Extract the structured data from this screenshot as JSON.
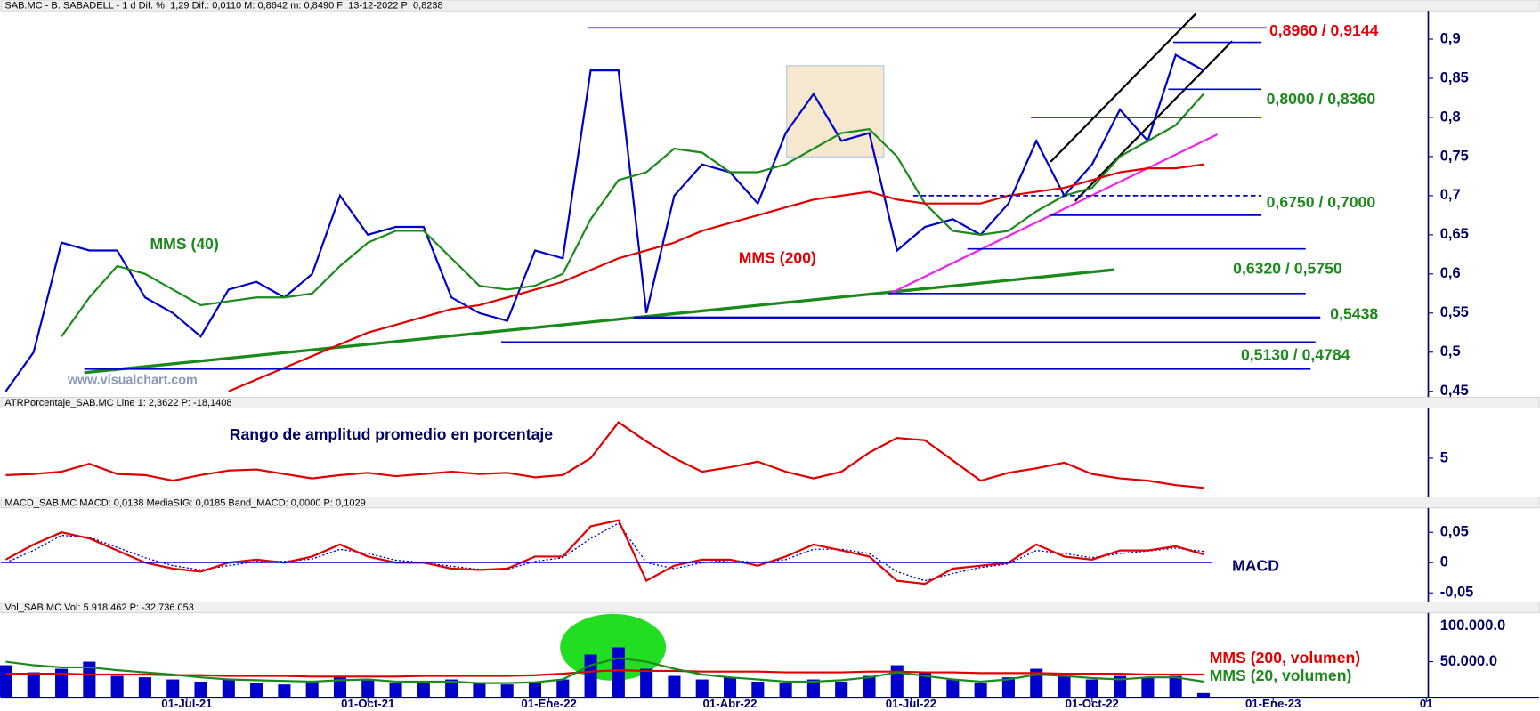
{
  "chart_data": {
    "type": "stock-panels",
    "x": [
      0,
      2,
      4,
      6,
      8,
      10,
      12,
      14,
      16,
      18,
      20,
      22,
      24,
      26,
      28,
      30,
      32,
      34,
      36,
      38,
      40,
      42,
      44,
      46,
      48,
      50,
      52,
      54,
      56,
      58,
      60,
      62,
      64,
      66,
      68,
      70,
      72,
      74,
      76,
      78,
      80,
      82,
      84,
      86
    ],
    "xlim": [
      0,
      102
    ],
    "xticks": [
      {
        "value": 13,
        "label": "01-Jul-21"
      },
      {
        "value": 26,
        "label": "01-Oct-21"
      },
      {
        "value": 39,
        "label": "01-Ene-22"
      },
      {
        "value": 52,
        "label": "01-Abr-22"
      },
      {
        "value": 65,
        "label": "01-Jul-22"
      },
      {
        "value": 78,
        "label": "01-Oct-22"
      },
      {
        "value": 91,
        "label": "01-Ene-23"
      },
      {
        "value": 102,
        "label": "01"
      }
    ],
    "watermark": "www.visualchart.com",
    "panels": [
      {
        "type": "line",
        "header": "SAB.MC - B. SABADELL - 1 d Dif. %: 1,29 Dif.: 0,0110 M: 0,8642 m: 0,8490 F: 13-12-2022 P: 0,8238",
        "ylim": [
          0.445,
          0.935
        ],
        "yticks": [
          {
            "value": 0.45,
            "label": "0,45"
          },
          {
            "value": 0.5,
            "label": "0,5"
          },
          {
            "value": 0.55,
            "label": "0,55"
          },
          {
            "value": 0.6,
            "label": "0,6"
          },
          {
            "value": 0.65,
            "label": "0,65"
          },
          {
            "value": 0.7,
            "label": "0,7"
          },
          {
            "value": 0.75,
            "label": "0,75"
          },
          {
            "value": 0.8,
            "label": "0,8"
          },
          {
            "value": 0.85,
            "label": "0,85"
          },
          {
            "value": 0.9,
            "label": "0,9"
          }
        ],
        "series": [
          {
            "color": "#0000cc",
            "values": [
              0.45,
              0.5,
              0.64,
              0.63,
              0.63,
              0.57,
              0.55,
              0.52,
              0.58,
              0.59,
              0.57,
              0.6,
              0.7,
              0.65,
              0.66,
              0.66,
              0.57,
              0.55,
              0.54,
              0.63,
              0.62,
              0.86,
              0.86,
              0.55,
              0.7,
              0.74,
              0.73,
              0.69,
              0.78,
              0.83,
              0.77,
              0.78,
              0.63,
              0.66,
              0.67,
              0.65,
              0.69,
              0.77,
              0.7,
              0.74,
              0.81,
              0.77,
              0.88,
              0.86
            ]
          },
          {
            "name": "MMS (40)",
            "color": "#1a8a1a",
            "values": [
              null,
              null,
              0.52,
              0.57,
              0.61,
              0.6,
              0.58,
              0.56,
              0.565,
              0.57,
              0.57,
              0.575,
              0.61,
              0.64,
              0.655,
              0.655,
              0.62,
              0.585,
              0.58,
              0.585,
              0.6,
              0.67,
              0.72,
              0.73,
              0.76,
              0.755,
              0.73,
              0.73,
              0.74,
              0.76,
              0.78,
              0.785,
              0.75,
              0.69,
              0.655,
              0.65,
              0.655,
              0.68,
              0.7,
              0.71,
              0.75,
              0.77,
              0.79,
              0.83
            ]
          },
          {
            "name": "MMS (200)",
            "color": "#e00000",
            "values": [
              null,
              null,
              null,
              null,
              null,
              null,
              null,
              null,
              0.45,
              0.465,
              0.48,
              0.495,
              0.51,
              0.525,
              0.535,
              0.545,
              0.555,
              0.56,
              0.57,
              0.58,
              0.59,
              0.605,
              0.62,
              0.63,
              0.64,
              0.655,
              0.665,
              0.675,
              0.685,
              0.695,
              0.7,
              0.705,
              0.695,
              0.69,
              0.69,
              0.69,
              0.7,
              0.705,
              0.71,
              0.72,
              0.73,
              0.735,
              0.735,
              0.74
            ]
          }
        ],
        "annotations": [
          {
            "text": "0,8960 / 0,9144",
            "color": "#e8000b",
            "levels": [
              0.896,
              0.9144
            ]
          },
          {
            "text": "0,8000 / 0,8360",
            "color": "#1a8a1a",
            "levels": [
              0.8,
              0.836
            ]
          },
          {
            "text": "0,6750 / 0,7000",
            "color": "#1a8a1a",
            "levels": [
              0.675,
              0.7
            ]
          },
          {
            "text": "0,6320 / 0,5750",
            "color": "#1a8a1a",
            "levels": [
              0.632,
              0.575
            ]
          },
          {
            "text": "0,5438",
            "color": "#1a8a1a",
            "levels": [
              0.5438
            ]
          },
          {
            "text": "0,5130 / 0,4784",
            "color": "#1a8a1a",
            "levels": [
              0.513,
              0.4784
            ]
          }
        ]
      },
      {
        "type": "line",
        "header": "ATRPorcentaje_SAB.MC Line 1: 2,3622 P: -18,1408",
        "note": "Rango de amplitud promedio en porcentaje",
        "ylim": [
          1.7,
          9.3
        ],
        "yticks": [
          5
        ],
        "series": [
          {
            "color": "#e00000",
            "values": [
              3.5,
              3.6,
              3.8,
              4.5,
              3.6,
              3.5,
              3.0,
              3.5,
              3.9,
              4.0,
              3.6,
              3.2,
              3.5,
              3.7,
              3.4,
              3.6,
              3.8,
              3.6,
              3.7,
              3.3,
              3.5,
              5.0,
              8.2,
              6.5,
              5.0,
              3.8,
              4.2,
              4.7,
              3.8,
              3.2,
              3.8,
              5.5,
              6.8,
              6.6,
              4.8,
              3.0,
              3.7,
              4.1,
              4.6,
              3.6,
              3.2,
              3.0,
              2.6,
              2.3622
            ]
          }
        ]
      },
      {
        "type": "line",
        "header": "MACD_SAB.MC MACD: 0,0138 MediaSIG: 0,0185 Band_MACD: 0,0000 P: 0,1029",
        "note": "MACD",
        "ylim": [
          -0.067,
          0.087
        ],
        "yticks": [
          {
            "value": 0.05,
            "label": "0,05"
          },
          0,
          {
            "value": -0.05,
            "label": "-0,05"
          }
        ],
        "series": [
          {
            "color": "#0000cc",
            "dashed": true,
            "values": [
              0.0,
              0.02,
              0.045,
              0.042,
              0.025,
              0.008,
              -0.005,
              -0.012,
              -0.005,
              0.002,
              0.002,
              0.006,
              0.022,
              0.015,
              0.004,
              0.0,
              -0.006,
              -0.011,
              -0.011,
              0.002,
              0.008,
              0.04,
              0.065,
              0.0,
              -0.01,
              0.0,
              0.004,
              0.0,
              0.005,
              0.022,
              0.022,
              0.015,
              -0.015,
              -0.03,
              -0.018,
              -0.008,
              -0.002,
              0.02,
              0.015,
              0.008,
              0.015,
              0.019,
              0.024,
              0.0185
            ]
          },
          {
            "color": "#e00000",
            "values": [
              0.005,
              0.03,
              0.05,
              0.04,
              0.02,
              0.0,
              -0.01,
              -0.015,
              0.0,
              0.005,
              0.0,
              0.01,
              0.03,
              0.01,
              0.0,
              0.0,
              -0.01,
              -0.012,
              -0.01,
              0.01,
              0.01,
              0.06,
              0.07,
              -0.03,
              -0.005,
              0.005,
              0.005,
              -0.005,
              0.01,
              0.03,
              0.02,
              0.01,
              -0.03,
              -0.035,
              -0.01,
              -0.005,
              0.0,
              0.03,
              0.01,
              0.005,
              0.02,
              0.02,
              0.027,
              0.0138
            ]
          }
        ]
      },
      {
        "type": "bar",
        "header": "Vol_SAB.MC Vol: 5.918.462 P: -32.736.053",
        "ylim": [
          0,
          117000000
        ],
        "yticks": [
          {
            "value": 100000000,
            "label": "100.000.0"
          },
          {
            "value": 50000000,
            "label": "50.000.0"
          }
        ],
        "color": "#0000cc",
        "values": [
          45000000,
          35000000,
          40000000,
          50000000,
          30000000,
          28000000,
          25000000,
          22000000,
          25000000,
          20000000,
          18000000,
          22000000,
          30000000,
          25000000,
          20000000,
          22000000,
          25000000,
          20000000,
          18000000,
          22000000,
          25000000,
          60000000,
          70000000,
          40000000,
          30000000,
          25000000,
          28000000,
          22000000,
          20000000,
          25000000,
          22000000,
          30000000,
          45000000,
          35000000,
          25000000,
          20000000,
          28000000,
          40000000,
          30000000,
          25000000,
          30000000,
          28000000,
          30000000,
          5918462
        ],
        "series": [
          {
            "name": "MMS (200, volumen)",
            "color": "#e00000",
            "values": [
              33000000,
              33000000,
              33000000,
              32000000,
              32000000,
              32000000,
              31000000,
              31000000,
              30000000,
              30000000,
              30000000,
              29000000,
              29000000,
              29000000,
              29000000,
              30000000,
              30000000,
              30000000,
              30000000,
              31000000,
              33000000,
              36000000,
              38000000,
              37000000,
              37000000,
              36000000,
              36000000,
              36000000,
              35000000,
              35000000,
              35000000,
              36000000,
              36000000,
              35000000,
              35000000,
              34000000,
              34000000,
              34000000,
              33000000,
              33000000,
              33000000,
              32000000,
              32000000,
              32000000
            ]
          },
          {
            "name": "MMS (20, volumen)",
            "color": "#1a8a1a",
            "values": [
              50000000,
              45000000,
              42000000,
              42000000,
              38000000,
              35000000,
              32000000,
              28000000,
              25000000,
              24000000,
              23000000,
              22000000,
              24000000,
              25000000,
              22000000,
              22000000,
              22000000,
              20000000,
              20000000,
              21000000,
              25000000,
              45000000,
              55000000,
              50000000,
              40000000,
              32000000,
              28000000,
              25000000,
              22000000,
              22000000,
              24000000,
              28000000,
              35000000,
              30000000,
              25000000,
              22000000,
              25000000,
              32000000,
              30000000,
              27000000,
              25000000,
              28000000,
              28000000,
              22000000
            ]
          }
        ]
      }
    ]
  }
}
